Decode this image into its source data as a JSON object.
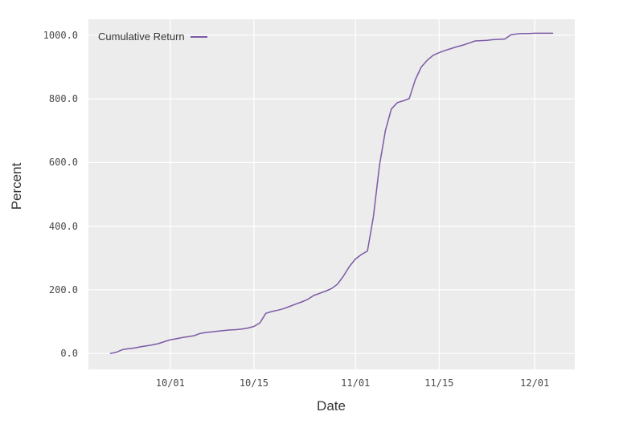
{
  "chart_data": {
    "type": "line",
    "title": "",
    "xlabel": "Date",
    "ylabel": "Percent",
    "grid": true,
    "legend_position": "top-left-inside",
    "x_ticks": [
      "10/01",
      "10/15",
      "11/01",
      "11/15",
      "12/01"
    ],
    "y_ticks": [
      0,
      200,
      400,
      600,
      800,
      1000
    ],
    "y_tick_labels": [
      "0.0",
      "200.0",
      "400.0",
      "600.0",
      "800.0",
      "1000.0"
    ],
    "ylim": [
      0,
      1000
    ],
    "x_range": [
      "09/21",
      "12/04"
    ],
    "series": [
      {
        "name": "Cumulative Return",
        "color": "#7b5aa5",
        "points": [
          [
            "09/21",
            0
          ],
          [
            "09/22",
            4
          ],
          [
            "09/23",
            12
          ],
          [
            "09/24",
            15
          ],
          [
            "09/25",
            17
          ],
          [
            "09/26",
            21
          ],
          [
            "09/27",
            24
          ],
          [
            "09/28",
            27
          ],
          [
            "09/29",
            31
          ],
          [
            "09/30",
            37
          ],
          [
            "10/01",
            43
          ],
          [
            "10/02",
            46
          ],
          [
            "10/03",
            50
          ],
          [
            "10/04",
            53
          ],
          [
            "10/05",
            56
          ],
          [
            "10/06",
            63
          ],
          [
            "10/07",
            66
          ],
          [
            "10/08",
            68
          ],
          [
            "10/09",
            70
          ],
          [
            "10/10",
            72
          ],
          [
            "10/11",
            74
          ],
          [
            "10/12",
            75
          ],
          [
            "10/13",
            77
          ],
          [
            "10/14",
            80
          ],
          [
            "10/15",
            85
          ],
          [
            "10/16",
            96
          ],
          [
            "10/17",
            126
          ],
          [
            "10/18",
            132
          ],
          [
            "10/19",
            136
          ],
          [
            "10/20",
            141
          ],
          [
            "10/21",
            148
          ],
          [
            "10/22",
            155
          ],
          [
            "10/23",
            162
          ],
          [
            "10/24",
            170
          ],
          [
            "10/25",
            182
          ],
          [
            "10/26",
            189
          ],
          [
            "10/27",
            196
          ],
          [
            "10/28",
            204
          ],
          [
            "10/29",
            218
          ],
          [
            "10/30",
            244
          ],
          [
            "10/31",
            274
          ],
          [
            "11/01",
            297
          ],
          [
            "11/02",
            311
          ],
          [
            "11/03",
            322
          ],
          [
            "11/04",
            430
          ],
          [
            "11/05",
            590
          ],
          [
            "11/06",
            700
          ],
          [
            "11/07",
            768
          ],
          [
            "11/08",
            788
          ],
          [
            "11/09",
            794
          ],
          [
            "11/10",
            801
          ],
          [
            "11/11",
            860
          ],
          [
            "11/12",
            900
          ],
          [
            "11/13",
            921
          ],
          [
            "11/14",
            937
          ],
          [
            "11/15",
            945
          ],
          [
            "11/16",
            952
          ],
          [
            "11/17",
            958
          ],
          [
            "11/18",
            964
          ],
          [
            "11/19",
            969
          ],
          [
            "11/20",
            975
          ],
          [
            "11/21",
            982
          ],
          [
            "11/22",
            983
          ],
          [
            "11/23",
            984
          ],
          [
            "11/24",
            986
          ],
          [
            "11/25",
            987
          ],
          [
            "11/26",
            988
          ],
          [
            "11/27",
            1001
          ],
          [
            "11/28",
            1004
          ],
          [
            "11/29",
            1005
          ],
          [
            "11/30",
            1005
          ],
          [
            "12/01",
            1006
          ],
          [
            "12/02",
            1006
          ],
          [
            "12/03",
            1006
          ],
          [
            "12/04",
            1006
          ]
        ]
      }
    ],
    "colors": {
      "page_background": "#ffffff",
      "plot_background": "#ececec",
      "gridline": "#ffffff",
      "tick_label": "#4a4a4a",
      "axis_label": "#363636",
      "line": "#7b5aa5"
    }
  }
}
